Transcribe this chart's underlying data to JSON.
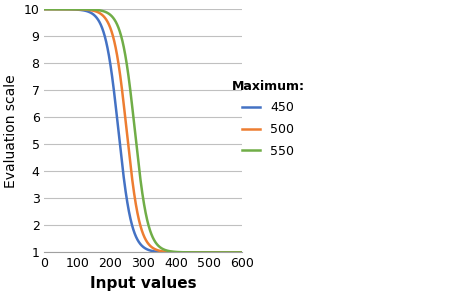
{
  "title": "",
  "xlabel": "Input values",
  "ylabel": "Evaluation scale",
  "xlim": [
    0,
    600
  ],
  "ylim": [
    1,
    10
  ],
  "xticks": [
    0,
    100,
    200,
    300,
    400,
    500,
    600
  ],
  "yticks": [
    1,
    2,
    3,
    4,
    5,
    6,
    7,
    8,
    9,
    10
  ],
  "legend_title": "Maximum:",
  "series": [
    {
      "label": "450",
      "maximum": 450,
      "color": "#4472C4"
    },
    {
      "label": "500",
      "maximum": 500,
      "color": "#ED7D31"
    },
    {
      "label": "550",
      "maximum": 550,
      "color": "#70AD47"
    }
  ],
  "grid_color": "#C0C0C0",
  "background_color": "#FFFFFF",
  "xlabel_fontsize": 11,
  "ylabel_fontsize": 10,
  "legend_fontsize": 9,
  "tick_fontsize": 9,
  "steepness_factor": 0.05
}
